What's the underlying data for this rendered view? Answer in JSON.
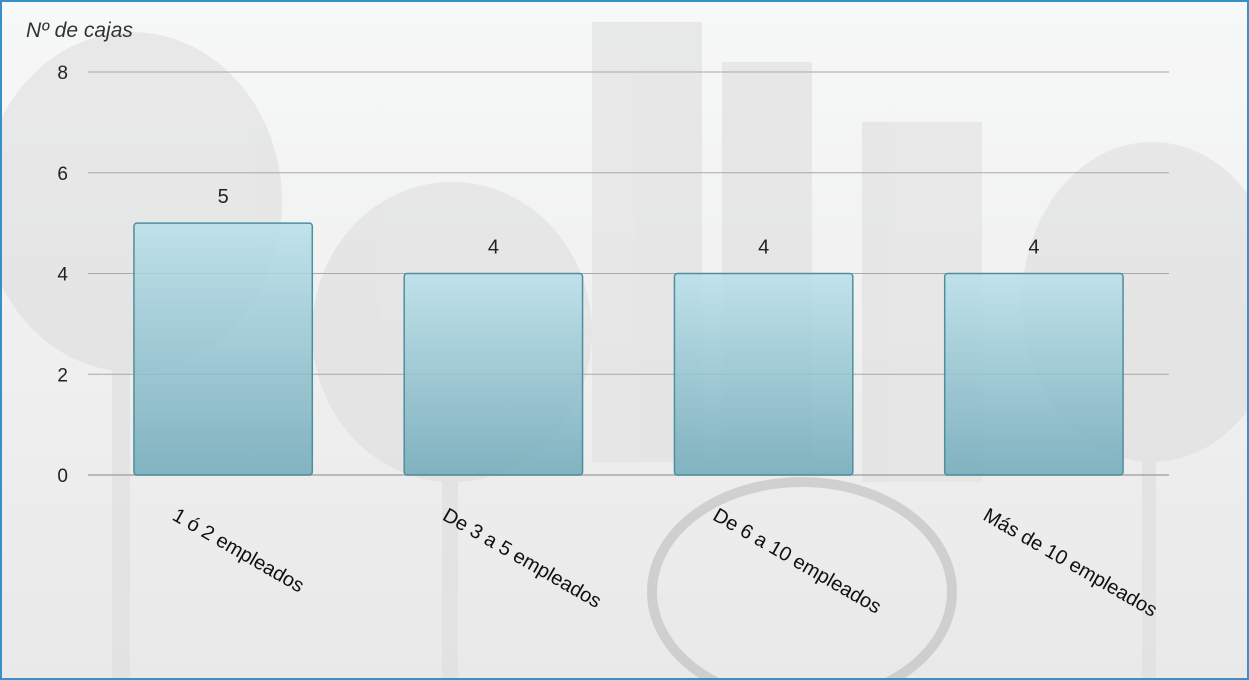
{
  "chart_data": {
    "type": "bar",
    "ylabel": "Nº de cajas",
    "xlabel": "",
    "categories": [
      "1 ó 2 empleados",
      "De 3 a 5 empleados",
      "De 6 a 10 empleados",
      "Más de 10 empleados"
    ],
    "values": [
      5,
      4,
      4,
      4
    ],
    "data_labels": [
      "5",
      "4",
      "4",
      "4"
    ],
    "ylim": [
      0,
      8
    ],
    "yticks": [
      0,
      2,
      4,
      6,
      8
    ],
    "ytick_labels": [
      "0",
      "2",
      "4",
      "6",
      "8"
    ],
    "grid": true,
    "legend": "none",
    "colors": {
      "bar_top": "#b8e0ea",
      "bar_bottom": "#6fa9b8",
      "bar_stroke": "#4f8e9e",
      "grid": "#a8a8a8",
      "frame": "#3a8fc7"
    }
  }
}
